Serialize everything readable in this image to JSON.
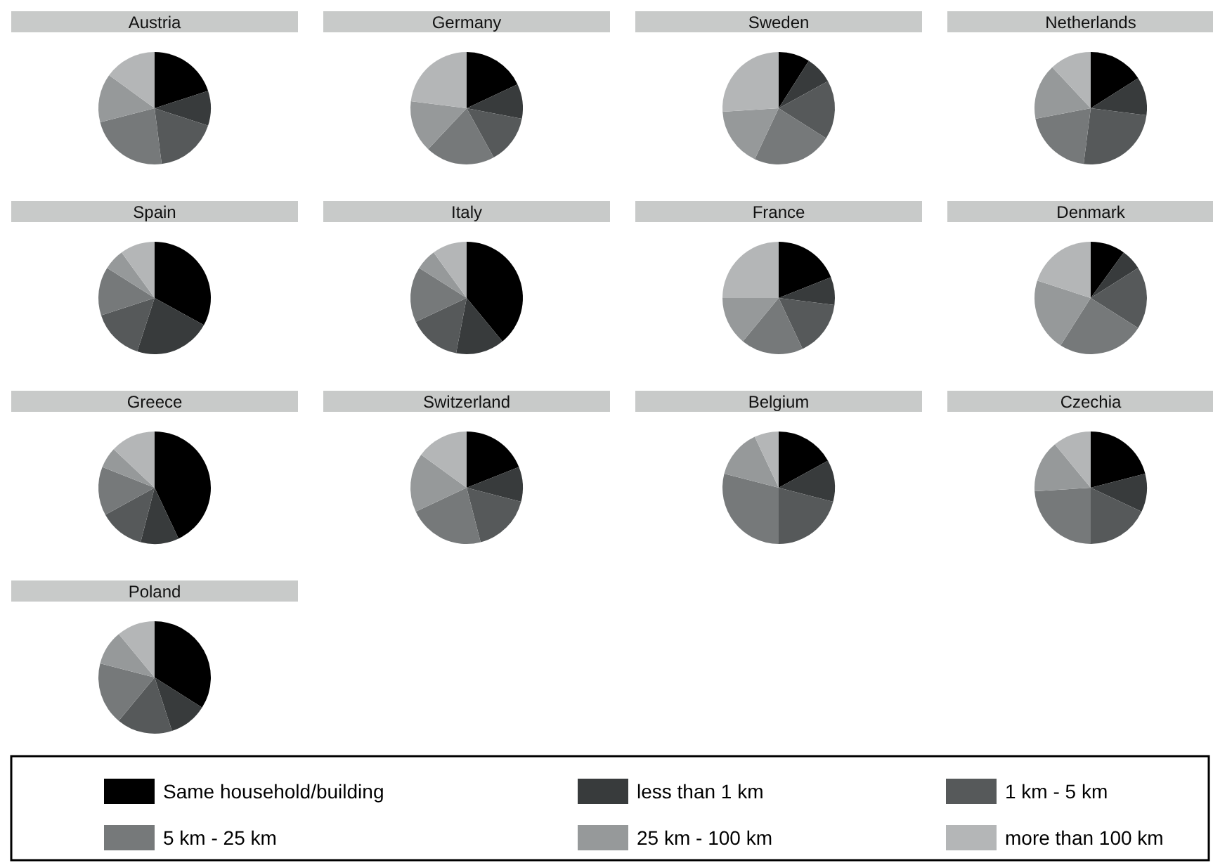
{
  "chart_data": [
    {
      "type": "pie",
      "title": "Austria",
      "values": [
        20,
        10,
        18,
        23,
        14,
        15
      ],
      "colors": [
        "#000000",
        "#383b3c",
        "#56595a",
        "#76797a",
        "#96999a",
        "#b4b6b7"
      ]
    },
    {
      "type": "pie",
      "title": "Germany",
      "values": [
        18,
        10,
        14,
        20,
        15,
        23
      ],
      "colors": [
        "#000000",
        "#383b3c",
        "#56595a",
        "#76797a",
        "#96999a",
        "#b4b6b7"
      ]
    },
    {
      "type": "pie",
      "title": "Sweden",
      "values": [
        9,
        8,
        17,
        23,
        17,
        26
      ],
      "colors": [
        "#000000",
        "#383b3c",
        "#56595a",
        "#76797a",
        "#96999a",
        "#b4b6b7"
      ]
    },
    {
      "type": "pie",
      "title": "Netherlands",
      "values": [
        16,
        11,
        25,
        20,
        16,
        12
      ],
      "colors": [
        "#000000",
        "#383b3c",
        "#56595a",
        "#76797a",
        "#96999a",
        "#b4b6b7"
      ]
    },
    {
      "type": "pie",
      "title": "Spain",
      "values": [
        33,
        22,
        15,
        14,
        6,
        10
      ],
      "colors": [
        "#000000",
        "#383b3c",
        "#56595a",
        "#76797a",
        "#96999a",
        "#b4b6b7"
      ]
    },
    {
      "type": "pie",
      "title": "Italy",
      "values": [
        39,
        14,
        15,
        16,
        6,
        10
      ],
      "colors": [
        "#000000",
        "#383b3c",
        "#56595a",
        "#76797a",
        "#96999a",
        "#b4b6b7"
      ]
    },
    {
      "type": "pie",
      "title": "France",
      "values": [
        19,
        8,
        16,
        18,
        14,
        25
      ],
      "colors": [
        "#000000",
        "#383b3c",
        "#56595a",
        "#76797a",
        "#96999a",
        "#b4b6b7"
      ]
    },
    {
      "type": "pie",
      "title": "Denmark",
      "values": [
        10,
        6,
        18,
        25,
        21,
        20
      ],
      "colors": [
        "#000000",
        "#383b3c",
        "#56595a",
        "#76797a",
        "#96999a",
        "#b4b6b7"
      ]
    },
    {
      "type": "pie",
      "title": "Greece",
      "values": [
        43,
        11,
        13,
        14,
        6,
        13
      ],
      "colors": [
        "#000000",
        "#383b3c",
        "#56595a",
        "#76797a",
        "#96999a",
        "#b4b6b7"
      ]
    },
    {
      "type": "pie",
      "title": "Switzerland",
      "values": [
        19,
        10,
        17,
        22,
        17,
        15
      ],
      "colors": [
        "#000000",
        "#383b3c",
        "#56595a",
        "#76797a",
        "#96999a",
        "#b4b6b7"
      ]
    },
    {
      "type": "pie",
      "title": "Belgium",
      "values": [
        17,
        12,
        21,
        29,
        14,
        7
      ],
      "colors": [
        "#000000",
        "#383b3c",
        "#56595a",
        "#76797a",
        "#96999a",
        "#b4b6b7"
      ]
    },
    {
      "type": "pie",
      "title": "Czechia",
      "values": [
        21,
        11,
        18,
        24,
        15,
        11
      ],
      "colors": [
        "#000000",
        "#383b3c",
        "#56595a",
        "#76797a",
        "#96999a",
        "#b4b6b7"
      ]
    },
    {
      "type": "pie",
      "title": "Poland",
      "categories": [
        "Same household/building",
        "less than 1 km",
        "1 km - 5 km",
        "5 km - 25 km",
        "25 km - 100 km",
        "more than 100 km"
      ],
      "values": [
        34,
        11,
        16,
        18,
        10,
        11
      ],
      "colors": [
        "#000000",
        "#383b3c",
        "#56595a",
        "#76797a",
        "#96999a",
        "#b4b6b7"
      ],
      "legend": "bottom"
    }
  ]
}
